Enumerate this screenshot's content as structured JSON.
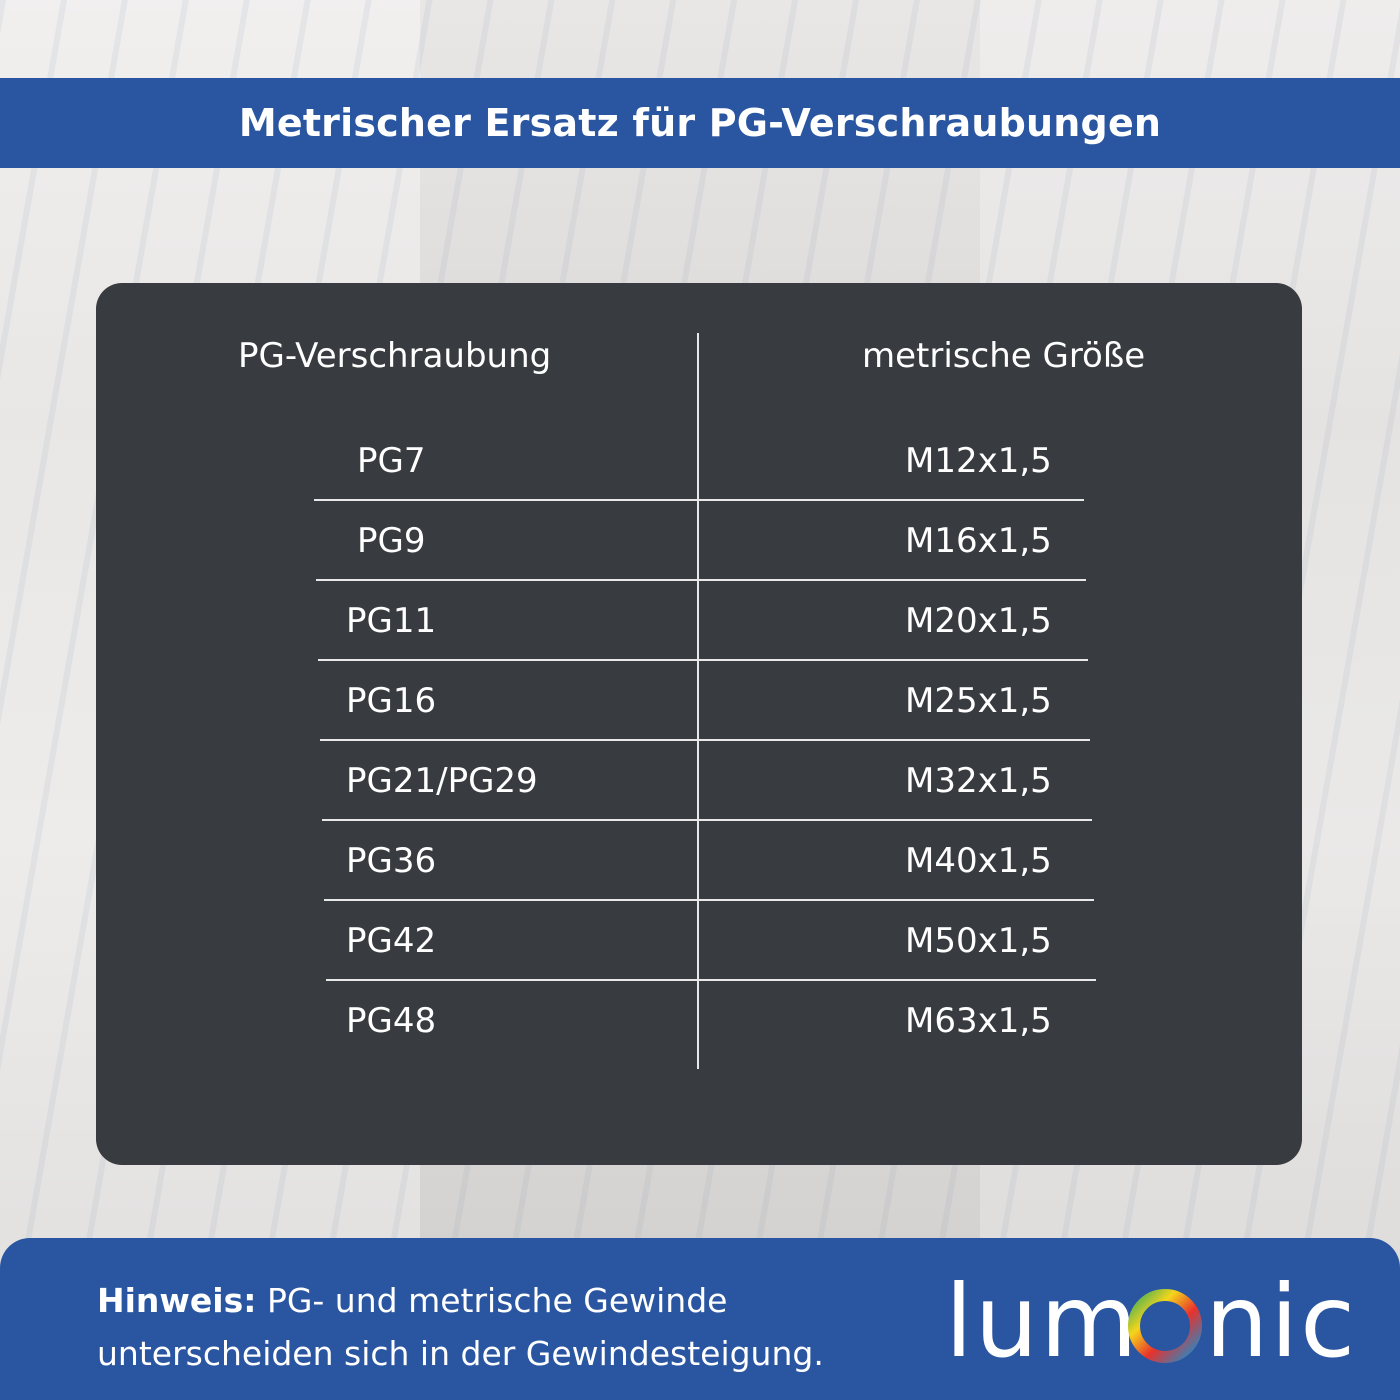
{
  "title": "Metrischer Ersatz für PG-Verschraubungen",
  "table": {
    "headers": [
      "PG-Verschraubung",
      "metrische Größe"
    ],
    "rows": [
      [
        "PG7",
        "M12x1,5"
      ],
      [
        "PG9",
        "M16x1,5"
      ],
      [
        "PG11",
        "M20x1,5"
      ],
      [
        "PG16",
        "M25x1,5"
      ],
      [
        "PG21/PG29",
        "M32x1,5"
      ],
      [
        "PG36",
        "M40x1,5"
      ],
      [
        "PG42",
        "M50x1,5"
      ],
      [
        "PG48",
        "M63x1,5"
      ]
    ]
  },
  "note": {
    "label": "Hinweis:",
    "text": " PG- und metrische Gewinde",
    "text2": "unterscheiden sich in der Gewindesteigung."
  },
  "brand": {
    "logo_text": "lumOnic",
    "colors": {
      "primary": "#2a56a1",
      "panel": "#383b40"
    }
  }
}
